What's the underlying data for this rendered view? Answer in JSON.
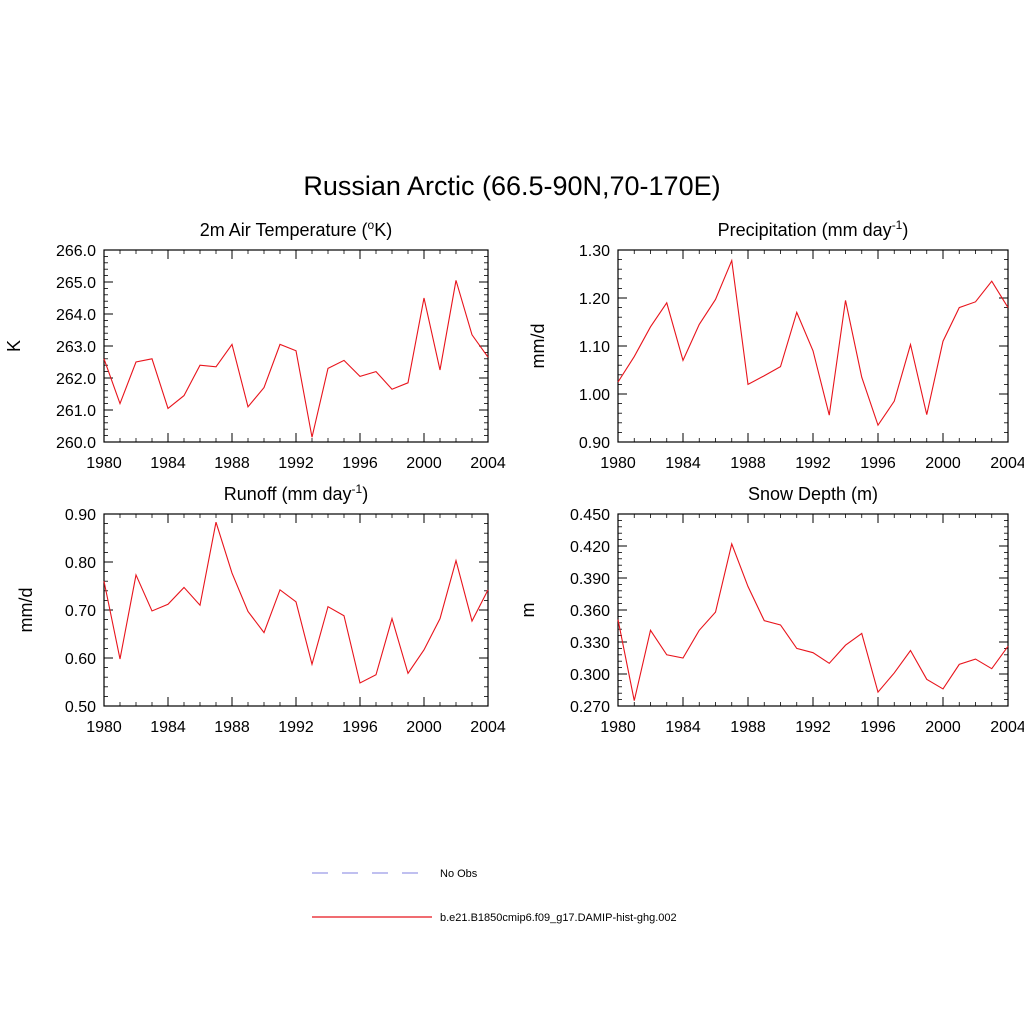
{
  "page_title": "Russian Arctic (66.5-90N,70-170E)",
  "colors": {
    "model_line": "#e8141c",
    "obs_line": "#9a9ae8",
    "axis": "#000000"
  },
  "legend": [
    {
      "label": "No Obs",
      "style": "dashed",
      "color": "#9a9ae8"
    },
    {
      "label": "b.e21.B1850cmip6.f09_g17.DAMIP-hist-ghg.002",
      "style": "solid",
      "color": "#e8141c"
    }
  ],
  "chart_data": [
    {
      "type": "line",
      "title": "2m Air Temperature (",
      "title_sup": "o",
      "title_tail": "K)",
      "ylabel": "K",
      "xlim": [
        1980,
        2004
      ],
      "ylim": [
        260.0,
        266.0
      ],
      "xticks": [
        1980,
        1984,
        1988,
        1992,
        1996,
        2000,
        2004
      ],
      "xtick_labels": [
        "1980",
        "1984",
        "1988",
        "1992",
        "1996",
        "2000",
        "2004"
      ],
      "yticks": [
        260.0,
        261.0,
        262.0,
        263.0,
        264.0,
        265.0,
        266.0
      ],
      "ytick_labels": [
        "260.0",
        "261.0",
        "262.0",
        "263.0",
        "264.0",
        "265.0",
        "266.0"
      ],
      "x": [
        1980,
        1981,
        1982,
        1983,
        1984,
        1985,
        1986,
        1987,
        1988,
        1989,
        1990,
        1991,
        1992,
        1993,
        1994,
        1995,
        1996,
        1997,
        1998,
        1999,
        2000,
        2001,
        2002,
        2003,
        2004
      ],
      "series": [
        {
          "values": [
            262.6,
            261.2,
            262.5,
            262.6,
            261.05,
            261.45,
            262.4,
            262.35,
            263.05,
            261.1,
            261.7,
            263.05,
            262.85,
            260.15,
            262.3,
            262.55,
            262.05,
            262.2,
            261.65,
            261.85,
            264.5,
            262.25,
            265.05,
            263.35,
            262.65
          ]
        }
      ]
    },
    {
      "type": "line",
      "title": "Precipitation (mm day",
      "title_sup": "-1",
      "title_tail": ")",
      "ylabel": "mm/d",
      "xlim": [
        1980,
        2004
      ],
      "ylim": [
        0.9,
        1.3
      ],
      "xticks": [
        1980,
        1984,
        1988,
        1992,
        1996,
        2000,
        2004
      ],
      "xtick_labels": [
        "1980",
        "1984",
        "1988",
        "1992",
        "1996",
        "2000",
        "2004"
      ],
      "yticks": [
        0.9,
        1.0,
        1.1,
        1.2,
        1.3
      ],
      "ytick_labels": [
        "0.90",
        "1.00",
        "1.10",
        "1.20",
        "1.30"
      ],
      "x": [
        1980,
        1981,
        1982,
        1983,
        1984,
        1985,
        1986,
        1987,
        1988,
        1989,
        1990,
        1991,
        1992,
        1993,
        1994,
        1995,
        1996,
        1997,
        1998,
        1999,
        2000,
        2001,
        2002,
        2003,
        2004
      ],
      "series": [
        {
          "values": [
            1.025,
            1.078,
            1.14,
            1.19,
            1.07,
            1.145,
            1.197,
            1.278,
            1.02,
            1.038,
            1.057,
            1.17,
            1.09,
            0.956,
            1.195,
            1.035,
            0.935,
            0.985,
            1.103,
            0.957,
            1.11,
            1.18,
            1.192,
            1.235,
            1.18
          ]
        }
      ]
    },
    {
      "type": "line",
      "title": "Runoff (mm day",
      "title_sup": "-1",
      "title_tail": ")",
      "ylabel": "mm/d",
      "xlim": [
        1980,
        2004
      ],
      "ylim": [
        0.5,
        0.9
      ],
      "xticks": [
        1980,
        1984,
        1988,
        1992,
        1996,
        2000,
        2004
      ],
      "xtick_labels": [
        "1980",
        "1984",
        "1988",
        "1992",
        "1996",
        "2000",
        "2004"
      ],
      "yticks": [
        0.5,
        0.6,
        0.7,
        0.8,
        0.9
      ],
      "ytick_labels": [
        "0.50",
        "0.60",
        "0.70",
        "0.80",
        "0.90"
      ],
      "x": [
        1980,
        1981,
        1982,
        1983,
        1984,
        1985,
        1986,
        1987,
        1988,
        1989,
        1990,
        1991,
        1992,
        1993,
        1994,
        1995,
        1996,
        1997,
        1998,
        1999,
        2000,
        2001,
        2002,
        2003,
        2004
      ],
      "series": [
        {
          "values": [
            0.76,
            0.598,
            0.773,
            0.698,
            0.712,
            0.747,
            0.71,
            0.883,
            0.777,
            0.697,
            0.653,
            0.742,
            0.717,
            0.587,
            0.707,
            0.688,
            0.548,
            0.565,
            0.682,
            0.568,
            0.617,
            0.682,
            0.803,
            0.677,
            0.742
          ]
        }
      ]
    },
    {
      "type": "line",
      "title": "Snow Depth (m)",
      "title_sup": "",
      "title_tail": "",
      "ylabel": "m",
      "xlim": [
        1980,
        2004
      ],
      "ylim": [
        0.27,
        0.45
      ],
      "xticks": [
        1980,
        1984,
        1988,
        1992,
        1996,
        2000,
        2004
      ],
      "xtick_labels": [
        "1980",
        "1984",
        "1988",
        "1992",
        "1996",
        "2000",
        "2004"
      ],
      "yticks": [
        0.27,
        0.3,
        0.33,
        0.36,
        0.39,
        0.42,
        0.45
      ],
      "ytick_labels": [
        "0.270",
        "0.300",
        "0.330",
        "0.360",
        "0.390",
        "0.420",
        "0.450"
      ],
      "x": [
        1980,
        1981,
        1982,
        1983,
        1984,
        1985,
        1986,
        1987,
        1988,
        1989,
        1990,
        1991,
        1992,
        1993,
        1994,
        1995,
        1996,
        1997,
        1998,
        1999,
        2000,
        2001,
        2002,
        2003,
        2004
      ],
      "series": [
        {
          "values": [
            0.351,
            0.275,
            0.341,
            0.318,
            0.315,
            0.341,
            0.358,
            0.422,
            0.382,
            0.35,
            0.346,
            0.324,
            0.32,
            0.31,
            0.327,
            0.338,
            0.283,
            0.301,
            0.322,
            0.295,
            0.286,
            0.309,
            0.314,
            0.305,
            0.326
          ]
        }
      ]
    }
  ]
}
